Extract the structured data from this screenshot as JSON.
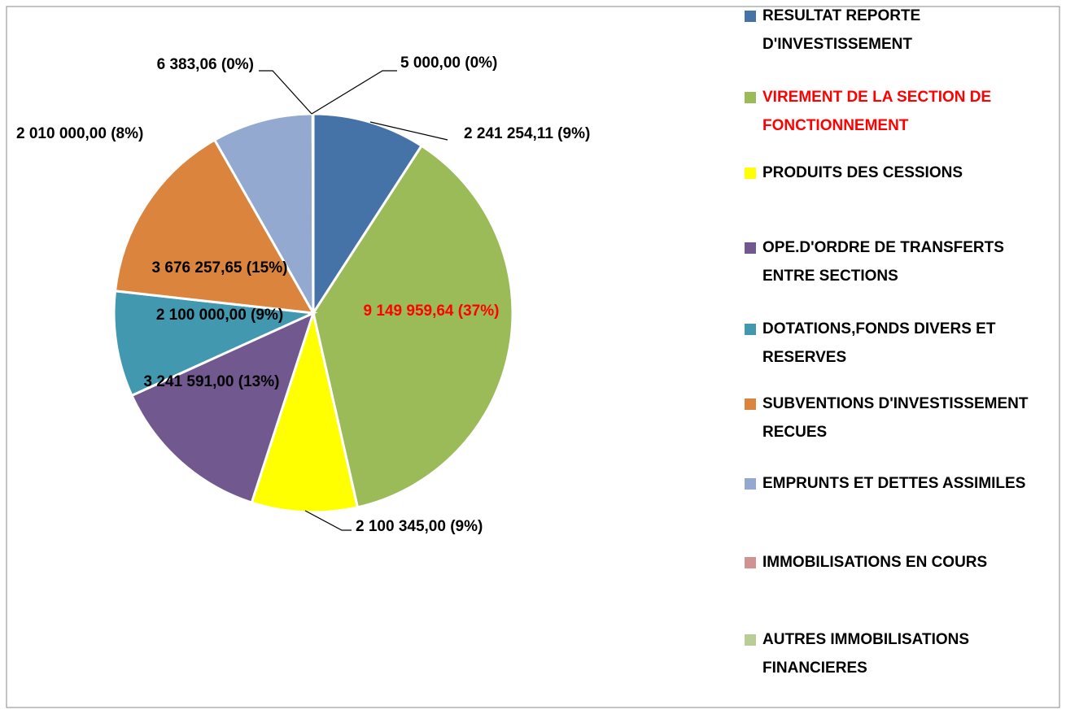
{
  "chart_data": {
    "type": "pie",
    "categories": [
      "RESULTAT REPORTE D'INVESTISSEMENT",
      "VIREMENT DE LA SECTION DE FONCTIONNEMENT",
      "PRODUITS DES CESSIONS",
      "OPE.D'ORDRE DE TRANSFERTS ENTRE SECTIONS",
      "DOTATIONS,FONDS DIVERS ET RESERVES",
      "SUBVENTIONS D'INVESTISSEMENT RECUES",
      "EMPRUNTS ET DETTES ASSIMILES",
      "IMMOBILISATIONS EN COURS",
      "AUTRES IMMOBILISATIONS FINANCIERES"
    ],
    "values": [
      2241254.11,
      9149959.64,
      2100345.0,
      3241591.0,
      2100000.0,
      3676257.65,
      2010000.0,
      6383.06,
      5000.0
    ],
    "value_labels": [
      "2 241 254,11  (9%)",
      "9 149 959,64 (37%)",
      "2 100 345,00 (9%)",
      "3 241 591,00 (13%)",
      "2 100 000,00 (9%)",
      "3 676 257,65 (15%)",
      "2 010 000,00  (8%)",
      "6 383,06  (0%)",
      "5 000,00 (0%)"
    ],
    "colors": [
      "#4572a7",
      "#9bbb59",
      "#ffff00",
      "#71588f",
      "#4198af",
      "#db843d",
      "#93a9cf",
      "#d19392",
      "#b9cd96"
    ],
    "text_colors": [
      "#000000",
      "#ff0000",
      "#000000",
      "#000000",
      "#000000",
      "#000000",
      "#000000",
      "#000000",
      "#000000"
    ],
    "legend": "right"
  }
}
